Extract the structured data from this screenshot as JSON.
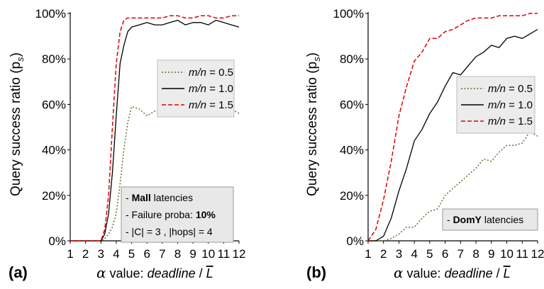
{
  "chart_data": [
    {
      "type": "line",
      "panel_label": "(a)",
      "ylabel": "Query success ratio (p",
      "ylabel_sub": "s",
      "ylabel_end": ")",
      "xlabel_prefix": "value: ",
      "xlabel_alpha": "α",
      "xlabel_italic": "deadline",
      "xlabel_sep": " / ",
      "xlabel_bar": "L",
      "xlim": [
        1,
        12
      ],
      "ylim": [
        0,
        100
      ],
      "x_ticks": [
        "1",
        "2",
        "3",
        "4",
        "5",
        "6",
        "7",
        "8",
        "9",
        "10",
        "11",
        "12"
      ],
      "y_ticks": [
        "0%",
        "20%",
        "40%",
        "60%",
        "80%",
        "100%"
      ],
      "legend_position": "upper-right",
      "legend": [
        {
          "var": "m/n",
          "value": "= 0.5",
          "color": "#6b6b34",
          "dash": "dotted"
        },
        {
          "var": "m/n",
          "value": "= 1.0",
          "color": "#000000",
          "dash": "solid"
        },
        {
          "var": "m/n",
          "value": "= 1.5",
          "color": "#e00000",
          "dash": "dashed"
        }
      ],
      "annotation": {
        "lines": [
          {
            "prefix": "- ",
            "bold": "Mall",
            "rest": " latencies"
          },
          {
            "prefix": "- Failure proba:  ",
            "bold": "10%",
            "rest": ""
          },
          {
            "prefix": "- |C| = 3 ,  |hops| = 4",
            "bold": "",
            "rest": ""
          }
        ]
      },
      "series": [
        {
          "name": "m/n = 0.5",
          "color": "#6b6b34",
          "dash": "dotted",
          "x": [
            1,
            1.5,
            2,
            2.5,
            3,
            3.25,
            3.5,
            3.75,
            4,
            4.25,
            4.5,
            4.75,
            5,
            5.5,
            6,
            6.5,
            7,
            7.5,
            8,
            8.5,
            9,
            9.5,
            10,
            10.5,
            11,
            11.5,
            12
          ],
          "y": [
            0,
            0,
            0,
            0,
            0,
            1,
            3,
            6,
            12,
            25,
            40,
            52,
            59,
            58,
            55,
            57,
            58,
            57,
            58,
            57,
            57,
            57,
            59,
            55,
            60,
            58,
            56
          ]
        },
        {
          "name": "m/n = 1.0",
          "color": "#000000",
          "dash": "solid",
          "x": [
            1,
            1.5,
            2,
            2.5,
            3,
            3.25,
            3.5,
            3.75,
            4,
            4.25,
            4.5,
            4.75,
            5,
            5.5,
            6,
            6.5,
            7,
            7.5,
            8,
            8.5,
            9,
            9.5,
            10,
            10.5,
            11,
            11.5,
            12
          ],
          "y": [
            0,
            0,
            0,
            0,
            0,
            3,
            12,
            30,
            55,
            78,
            86,
            92,
            94,
            95,
            96,
            95,
            95,
            96,
            97,
            95,
            96,
            96,
            95,
            97,
            96,
            95,
            94
          ]
        },
        {
          "name": "m/n = 1.5",
          "color": "#e00000",
          "dash": "dashed",
          "x": [
            1,
            1.5,
            2,
            2.5,
            3,
            3.25,
            3.5,
            3.75,
            4,
            4.25,
            4.5,
            4.75,
            5,
            5.5,
            6,
            6.5,
            7,
            7.5,
            8,
            8.5,
            9,
            9.5,
            10,
            10.5,
            11,
            11.5,
            12
          ],
          "y": [
            0,
            0,
            0,
            0,
            0,
            5,
            20,
            50,
            78,
            92,
            97,
            98,
            98,
            98,
            98,
            98,
            98,
            99,
            99,
            98,
            98,
            99,
            99,
            98,
            98,
            99,
            99
          ]
        }
      ]
    },
    {
      "type": "line",
      "panel_label": "(b)",
      "ylabel": "Query success ratio (p",
      "ylabel_sub": "s",
      "ylabel_end": ")",
      "xlabel_prefix": "value: ",
      "xlabel_alpha": "α",
      "xlabel_italic": "deadline",
      "xlabel_sep": " / ",
      "xlabel_bar": "L",
      "xlim": [
        1,
        12
      ],
      "ylim": [
        0,
        100
      ],
      "x_ticks": [
        "1",
        "2",
        "3",
        "4",
        "5",
        "6",
        "7",
        "8",
        "9",
        "10",
        "11",
        "12"
      ],
      "y_ticks": [
        "0%",
        "20%",
        "40%",
        "60%",
        "80%",
        "100%"
      ],
      "legend_position": "right",
      "legend": [
        {
          "var": "m/n",
          "value": "= 0.5",
          "color": "#6b6b34",
          "dash": "dotted"
        },
        {
          "var": "m/n",
          "value": "= 1.0",
          "color": "#000000",
          "dash": "solid"
        },
        {
          "var": "m/n",
          "value": "= 1.5",
          "color": "#e00000",
          "dash": "dashed"
        }
      ],
      "annotation": {
        "lines": [
          {
            "prefix": "- ",
            "bold": "DomY",
            "rest": " latencies"
          }
        ]
      },
      "series": [
        {
          "name": "m/n = 0.5",
          "color": "#6b6b34",
          "dash": "dotted",
          "x": [
            1,
            1.5,
            2,
            2.5,
            3,
            3.5,
            4,
            4.5,
            5,
            5.5,
            6,
            6.5,
            7,
            7.5,
            8,
            8.5,
            9,
            9.5,
            10,
            10.5,
            11,
            11.5,
            12
          ],
          "y": [
            0,
            0,
            0,
            1,
            3,
            6,
            6,
            10,
            13,
            14,
            20,
            23,
            26,
            29,
            32,
            36,
            35,
            39,
            42,
            42,
            43,
            48,
            46
          ]
        },
        {
          "name": "m/n = 1.0",
          "color": "#000000",
          "dash": "solid",
          "x": [
            1,
            1.5,
            2,
            2.5,
            3,
            3.5,
            4,
            4.5,
            5,
            5.5,
            6,
            6.5,
            7,
            7.5,
            8,
            8.5,
            9,
            9.5,
            10,
            10.5,
            11,
            11.5,
            12
          ],
          "y": [
            0,
            0,
            2,
            10,
            22,
            32,
            44,
            49,
            56,
            61,
            68,
            74,
            73,
            77,
            81,
            83,
            86,
            85,
            89,
            90,
            89,
            91,
            93
          ]
        },
        {
          "name": "m/n = 1.5",
          "color": "#e00000",
          "dash": "dashed",
          "x": [
            1,
            1.5,
            2,
            2.5,
            3,
            3.5,
            4,
            4.5,
            5,
            5.5,
            6,
            6.5,
            7,
            7.5,
            8,
            8.5,
            9,
            9.5,
            10,
            10.5,
            11,
            11.5,
            12
          ],
          "y": [
            0,
            5,
            18,
            35,
            55,
            68,
            79,
            83,
            89,
            89,
            92,
            93,
            95,
            97,
            98,
            98,
            98,
            99,
            99,
            99,
            99,
            100,
            100
          ]
        }
      ]
    }
  ]
}
